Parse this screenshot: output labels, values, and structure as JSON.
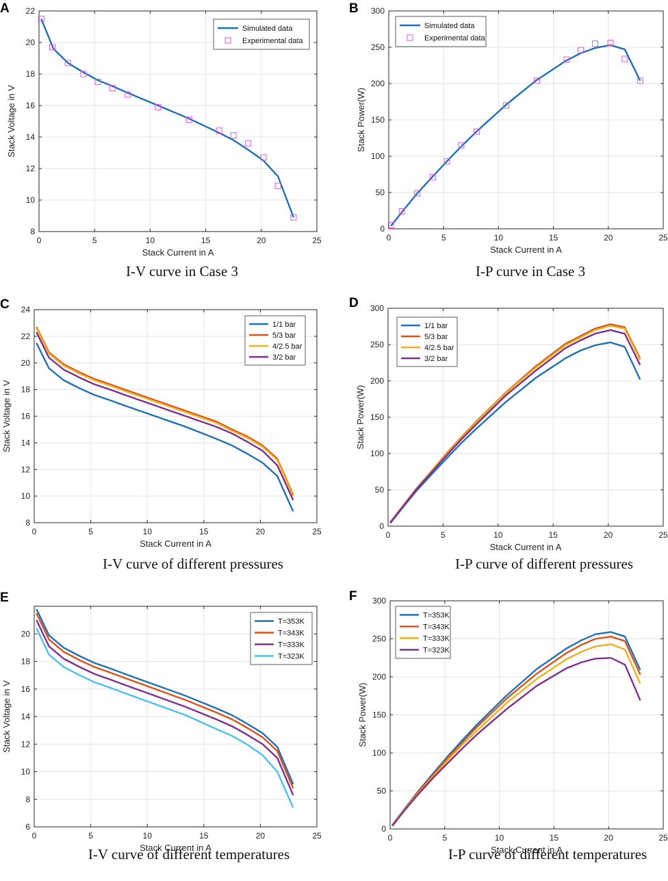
{
  "chart_data": [
    {
      "panel": "A",
      "type": "line",
      "caption": "I-V curve in Case 3",
      "xlabel": "Stack Current in A",
      "ylabel": "Stack Voltage in V",
      "xlim": [
        0,
        25
      ],
      "ylim": [
        8,
        22
      ],
      "xticks": [
        0,
        5,
        10,
        15,
        20,
        25
      ],
      "yticks": [
        8,
        10,
        12,
        14,
        16,
        18,
        20,
        22
      ],
      "grid": true,
      "legend_position": "top-right",
      "series": [
        {
          "name": "Simulated data",
          "style": "line",
          "color": "#1f6fb6",
          "x": [
            0.2,
            1.3,
            2.6,
            4.0,
            5.3,
            6.7,
            8.0,
            10.7,
            13.4,
            16.1,
            17.5,
            18.8,
            20.2,
            21.5,
            22.9
          ],
          "y": [
            21.5,
            19.6,
            18.7,
            18.1,
            17.6,
            17.2,
            16.8,
            16.0,
            15.2,
            14.3,
            13.8,
            13.2,
            12.5,
            11.5,
            8.9
          ]
        },
        {
          "name": "Experimental data",
          "style": "marker",
          "color": "#e055e0",
          "x": [
            0.2,
            1.2,
            2.6,
            4.0,
            5.3,
            6.6,
            8.0,
            10.7,
            13.5,
            16.2,
            17.5,
            18.8,
            20.2,
            21.5,
            22.9
          ],
          "y": [
            21.5,
            19.7,
            18.7,
            18.0,
            17.5,
            17.1,
            16.7,
            15.9,
            15.1,
            14.4,
            14.1,
            13.6,
            12.7,
            10.9,
            8.9
          ]
        }
      ]
    },
    {
      "panel": "B",
      "type": "line",
      "caption": "I-P curve in Case 3",
      "xlabel": "Stack Current in A",
      "ylabel": "Stack Power(W)",
      "xlim": [
        0,
        25
      ],
      "ylim": [
        0,
        300
      ],
      "xticks": [
        0,
        5,
        10,
        15,
        20,
        25
      ],
      "yticks": [
        0,
        50,
        100,
        150,
        200,
        250,
        300
      ],
      "grid": true,
      "legend_position": "top-left",
      "series": [
        {
          "name": "Simulated  data",
          "style": "line",
          "color": "#1f6fb6",
          "x": [
            0.2,
            1.3,
            2.6,
            4.0,
            5.3,
            6.7,
            8.0,
            10.7,
            13.4,
            16.1,
            17.5,
            18.8,
            20.2,
            21.5,
            22.9
          ],
          "y": [
            4,
            25,
            49,
            72,
            93,
            115,
            134,
            171,
            204,
            231,
            242,
            249,
            253,
            247,
            204
          ]
        },
        {
          "name": "Experimental data",
          "style": "marker",
          "color": "#e055e0",
          "x": [
            0.2,
            1.2,
            2.6,
            4.0,
            5.3,
            6.6,
            8.0,
            10.7,
            13.5,
            16.2,
            17.5,
            18.8,
            20.2,
            21.5,
            22.9
          ],
          "y": [
            5,
            24,
            49,
            71,
            93,
            115,
            134,
            170,
            204,
            233,
            246,
            255,
            256,
            234,
            204
          ]
        }
      ]
    },
    {
      "panel": "C",
      "type": "line",
      "caption": "I-V curve of different pressures",
      "xlabel": "Stack Current in A",
      "ylabel": "Stack Voltage in V",
      "xlim": [
        0,
        25
      ],
      "ylim": [
        8,
        24
      ],
      "xticks": [
        0,
        5,
        10,
        15,
        20,
        25
      ],
      "yticks": [
        8,
        10,
        12,
        14,
        16,
        18,
        20,
        22,
        24
      ],
      "grid": true,
      "legend_position": "top-right",
      "series": [
        {
          "name": "1/1 bar",
          "style": "line",
          "color": "#1f6fb6",
          "x": [
            0.2,
            1.3,
            2.6,
            4.0,
            5.3,
            6.7,
            8.0,
            10.7,
            13.4,
            16.1,
            17.5,
            18.8,
            20.2,
            21.5,
            22.9
          ],
          "y": [
            21.5,
            19.6,
            18.7,
            18.1,
            17.6,
            17.2,
            16.8,
            16.0,
            15.2,
            14.3,
            13.8,
            13.2,
            12.5,
            11.5,
            8.85
          ]
        },
        {
          "name": "5/3 bar",
          "style": "line",
          "color": "#d95319",
          "x": [
            0.2,
            1.3,
            2.6,
            4.0,
            5.3,
            6.7,
            8.0,
            10.7,
            13.4,
            16.1,
            17.5,
            18.8,
            20.2,
            21.5,
            22.9
          ],
          "y": [
            22.7,
            20.8,
            19.9,
            19.3,
            18.8,
            18.4,
            18.0,
            17.2,
            16.4,
            15.6,
            15.0,
            14.5,
            13.8,
            12.8,
            10.1
          ]
        },
        {
          "name": "4/2.5 bar",
          "style": "line",
          "color": "#edb120",
          "x": [
            0.2,
            1.3,
            2.6,
            4.0,
            5.3,
            6.7,
            8.0,
            10.7,
            13.4,
            16.1,
            17.5,
            18.8,
            20.2,
            21.5,
            22.9
          ],
          "y": [
            22.6,
            20.7,
            19.8,
            19.2,
            18.7,
            18.3,
            17.9,
            17.1,
            16.3,
            15.5,
            14.9,
            14.4,
            13.7,
            12.7,
            10.0
          ]
        },
        {
          "name": "3/2 bar",
          "style": "line",
          "color": "#7e2f8e",
          "x": [
            0.2,
            1.3,
            2.6,
            4.0,
            5.3,
            6.7,
            8.0,
            10.7,
            13.4,
            16.1,
            17.5,
            18.8,
            20.2,
            21.5,
            22.9
          ],
          "y": [
            22.3,
            20.4,
            19.5,
            18.9,
            18.4,
            18.0,
            17.6,
            16.8,
            16.0,
            15.2,
            14.7,
            14.1,
            13.4,
            12.3,
            9.7
          ]
        }
      ]
    },
    {
      "panel": "D",
      "type": "line",
      "caption": "I-P curve of different pressures",
      "xlabel": "Stack Current in A",
      "ylabel": "Stack Power(W)",
      "xlim": [
        0,
        25
      ],
      "ylim": [
        0,
        300
      ],
      "xticks": [
        0,
        5,
        10,
        15,
        20,
        25
      ],
      "yticks": [
        0,
        50,
        100,
        150,
        200,
        250,
        300
      ],
      "grid": true,
      "legend_position": "top-left",
      "series": [
        {
          "name": "1/1 bar",
          "style": "line",
          "color": "#1f6fb6",
          "x": [
            0.2,
            1.3,
            2.6,
            4.0,
            5.3,
            6.7,
            8.0,
            10.7,
            13.4,
            16.1,
            17.5,
            18.8,
            20.2,
            21.5,
            22.9
          ],
          "y": [
            4,
            25,
            49,
            72,
            93,
            115,
            134,
            171,
            204,
            231,
            242,
            249,
            253,
            247,
            202
          ]
        },
        {
          "name": "5/3 bar",
          "style": "line",
          "color": "#d95319",
          "x": [
            0.2,
            1.3,
            2.6,
            4.0,
            5.3,
            6.7,
            8.0,
            10.7,
            13.4,
            16.1,
            17.5,
            18.8,
            20.2,
            21.5,
            22.9
          ],
          "y": [
            5,
            27,
            52,
            77,
            100,
            123,
            144,
            184,
            220,
            251,
            262,
            272,
            278,
            274,
            231
          ]
        },
        {
          "name": "4/2.5 bar",
          "style": "line",
          "color": "#edb120",
          "x": [
            0.2,
            1.3,
            2.6,
            4.0,
            5.3,
            6.7,
            8.0,
            10.7,
            13.4,
            16.1,
            17.5,
            18.8,
            20.2,
            21.5,
            22.9
          ],
          "y": [
            5,
            27,
            51,
            77,
            99,
            122,
            143,
            183,
            218,
            249,
            260,
            270,
            276,
            272,
            229
          ]
        },
        {
          "name": "3/2 bar",
          "style": "line",
          "color": "#7e2f8e",
          "x": [
            0.2,
            1.3,
            2.6,
            4.0,
            5.3,
            6.7,
            8.0,
            10.7,
            13.4,
            16.1,
            17.5,
            18.8,
            20.2,
            21.5,
            22.9
          ],
          "y": [
            5,
            26,
            51,
            75,
            97,
            120,
            140,
            180,
            214,
            245,
            256,
            265,
            270,
            265,
            222
          ]
        }
      ]
    },
    {
      "panel": "E",
      "type": "line",
      "caption": "I-V curve of different temperatures",
      "xlabel": "Stack Current in A",
      "ylabel": "Stack Voltage in V",
      "xlim": [
        0,
        25
      ],
      "ylim": [
        6,
        22
      ],
      "xticks": [
        0,
        5,
        10,
        15,
        20,
        25
      ],
      "yticks": [
        6,
        8,
        10,
        12,
        14,
        16,
        18,
        20
      ],
      "grid": true,
      "legend_position": "top-right",
      "series": [
        {
          "name": "T=353K",
          "style": "line",
          "color": "#1f6fb6",
          "x": [
            0.2,
            1.3,
            2.6,
            4.0,
            5.3,
            6.7,
            8.0,
            10.7,
            13.4,
            16.1,
            17.5,
            18.8,
            20.2,
            21.5,
            22.9
          ],
          "y": [
            21.8,
            19.9,
            19.0,
            18.4,
            17.9,
            17.5,
            17.1,
            16.3,
            15.5,
            14.6,
            14.1,
            13.5,
            12.8,
            11.8,
            9.1
          ]
        },
        {
          "name": "T=343K",
          "style": "line",
          "color": "#d95319",
          "x": [
            0.2,
            1.3,
            2.6,
            4.0,
            5.3,
            6.7,
            8.0,
            10.7,
            13.4,
            16.1,
            17.5,
            18.8,
            20.2,
            21.5,
            22.9
          ],
          "y": [
            21.5,
            19.6,
            18.7,
            18.1,
            17.6,
            17.2,
            16.8,
            16.0,
            15.2,
            14.3,
            13.8,
            13.2,
            12.5,
            11.5,
            8.8
          ]
        },
        {
          "name": "T=333K",
          "style": "line",
          "color": "#7e2f8e",
          "x": [
            0.2,
            1.3,
            2.6,
            4.0,
            5.3,
            6.7,
            8.0,
            10.7,
            13.4,
            16.1,
            17.5,
            18.8,
            20.2,
            21.5,
            22.9
          ],
          "y": [
            21.0,
            19.1,
            18.2,
            17.6,
            17.1,
            16.7,
            16.3,
            15.5,
            14.7,
            13.8,
            13.3,
            12.7,
            12.0,
            11.0,
            8.3
          ]
        },
        {
          "name": "T=323K",
          "style": "line",
          "color": "#4dbeee",
          "x": [
            0.2,
            1.3,
            2.6,
            4.0,
            5.3,
            6.7,
            8.0,
            10.7,
            13.4,
            16.1,
            17.5,
            18.8,
            20.2,
            21.5,
            22.9
          ],
          "y": [
            20.4,
            18.5,
            17.6,
            17.0,
            16.5,
            16.1,
            15.7,
            14.9,
            14.1,
            13.1,
            12.6,
            12.0,
            11.2,
            10.0,
            7.4
          ]
        }
      ]
    },
    {
      "panel": "F",
      "type": "line",
      "caption": "I-P curve of different temperatures",
      "xlabel": "Stack Current in A",
      "ylabel": "Stack Power(W)",
      "xlim": [
        0,
        25
      ],
      "ylim": [
        0,
        300
      ],
      "xticks": [
        0,
        5,
        10,
        15,
        20,
        25
      ],
      "yticks": [
        0,
        50,
        100,
        150,
        200,
        250,
        300
      ],
      "grid": true,
      "legend_position": "top-left",
      "series": [
        {
          "name": "T=353K",
          "style": "line",
          "color": "#1f6fb6",
          "x": [
            0.2,
            1.3,
            2.6,
            4.0,
            5.3,
            6.7,
            8.0,
            10.7,
            13.4,
            16.1,
            17.5,
            18.8,
            20.2,
            21.5,
            22.9
          ],
          "y": [
            5,
            26,
            50,
            74,
            96,
            118,
            138,
            176,
            210,
            237,
            248,
            256,
            259,
            253,
            209
          ]
        },
        {
          "name": "T=343K",
          "style": "line",
          "color": "#d95319",
          "x": [
            0.2,
            1.3,
            2.6,
            4.0,
            5.3,
            6.7,
            8.0,
            10.7,
            13.4,
            16.1,
            17.5,
            18.8,
            20.2,
            21.5,
            22.9
          ],
          "y": [
            5,
            25,
            49,
            72,
            94,
            115,
            135,
            172,
            204,
            231,
            242,
            250,
            253,
            247,
            203
          ]
        },
        {
          "name": "T=333K",
          "style": "line",
          "color": "#edb120",
          "x": [
            0.2,
            1.3,
            2.6,
            4.0,
            5.3,
            6.7,
            8.0,
            10.7,
            13.4,
            16.1,
            17.5,
            18.8,
            20.2,
            21.5,
            22.9
          ],
          "y": [
            4,
            25,
            47,
            70,
            91,
            112,
            130,
            166,
            197,
            223,
            233,
            240,
            243,
            236,
            191
          ]
        },
        {
          "name": "T=323K",
          "style": "line",
          "color": "#7e2f8e",
          "x": [
            0.2,
            1.3,
            2.6,
            4.0,
            5.3,
            6.7,
            8.0,
            10.7,
            13.4,
            16.1,
            17.5,
            18.8,
            20.2,
            21.5,
            22.9
          ],
          "y": [
            4,
            24,
            46,
            68,
            87,
            107,
            125,
            158,
            188,
            211,
            219,
            224,
            225,
            216,
            169
          ]
        }
      ]
    }
  ]
}
